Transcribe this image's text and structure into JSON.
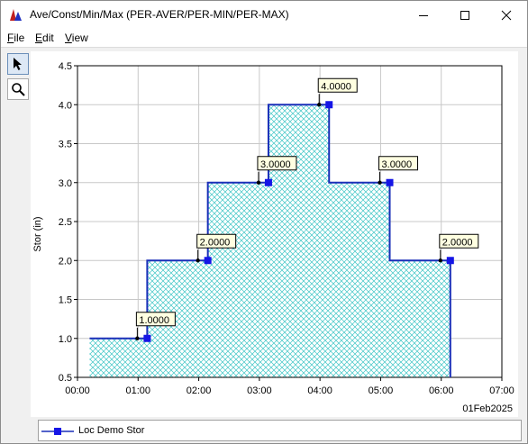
{
  "window": {
    "title": "Ave/Const/Min/Max (PER-AVER/PER-MIN/PER-MAX)",
    "minimize_icon": "minimize-icon",
    "maximize_icon": "maximize-icon",
    "close_icon": "close-icon",
    "app_icon": "hec-dssvue-chart-icon"
  },
  "menubar": {
    "items": [
      {
        "label": "File",
        "mnemonic": "F"
      },
      {
        "label": "Edit",
        "mnemonic": "E"
      },
      {
        "label": "View",
        "mnemonic": "V"
      }
    ]
  },
  "toolbar": {
    "tools": [
      {
        "name": "pointer-tool",
        "icon": "arrow-pointer-icon",
        "active": true
      },
      {
        "name": "zoom-tool",
        "icon": "magnifier-icon",
        "active": false
      }
    ]
  },
  "colors": {
    "series_line": "#1a2fb8",
    "series_marker": "#1515e6",
    "fill_hatch": "#3ec6c6",
    "fill_background": "#ffffff",
    "label_background": "#ffffe1",
    "grid": "#c8c8c8"
  },
  "legend": {
    "series_label": "Loc Demo Stor"
  },
  "chart_data": {
    "type": "area",
    "ylabel": "Stor (in)",
    "xlabel": "",
    "date_label": "01Feb2025",
    "ylim": [
      0.5,
      4.5
    ],
    "y_ticks": [
      "0.5",
      "1.0",
      "1.5",
      "2.0",
      "2.5",
      "3.0",
      "3.5",
      "4.0",
      "4.5"
    ],
    "y_tick_values": [
      0.5,
      1.0,
      1.5,
      2.0,
      2.5,
      3.0,
      3.5,
      4.0,
      4.5
    ],
    "x_ticks": [
      "00:00",
      "01:00",
      "02:00",
      "03:00",
      "04:00",
      "05:00",
      "06:00",
      "07:00"
    ],
    "x_tick_hours": [
      0,
      1,
      2,
      3,
      4,
      5,
      6,
      7
    ],
    "grid": true,
    "series": [
      {
        "name": "Loc Demo Stor",
        "step": "period-average",
        "period_start_hours": [
          0.2,
          1.15,
          2.15,
          3.15,
          4.15,
          5.15
        ],
        "period_end_hours": [
          1.15,
          2.15,
          3.15,
          4.15,
          5.15,
          6.15
        ],
        "values": [
          1.0,
          2.0,
          3.0,
          4.0,
          3.0,
          2.0
        ],
        "data_labels": [
          "1.0000",
          "2.0000",
          "3.0000",
          "4.0000",
          "3.0000",
          "2.0000"
        ]
      }
    ]
  }
}
